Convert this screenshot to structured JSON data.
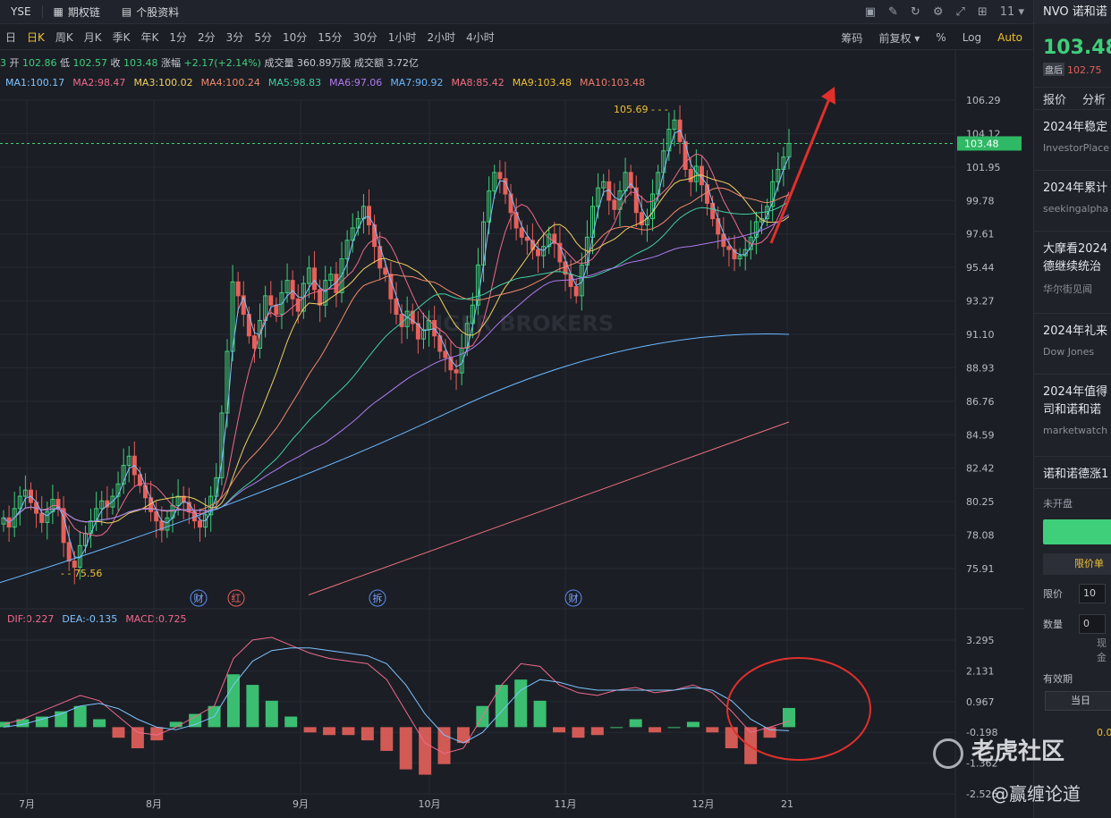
{
  "topbar": {
    "exchange": "YSE",
    "options_label": "期权链",
    "profile_label": "个股资料",
    "right_menu": "11"
  },
  "periods": [
    "日",
    "日K",
    "周K",
    "月K",
    "季K",
    "年K",
    "1分",
    "2分",
    "3分",
    "5分",
    "10分",
    "15分",
    "30分",
    "1小时",
    "2小时",
    "4小时"
  ],
  "active_period": "日K",
  "period_right": [
    "筹码",
    "前复权",
    "%",
    "Log",
    "Auto"
  ],
  "quote": {
    "open_label": "开",
    "open": "102.86",
    "low_label": "低",
    "low": "102.57",
    "close_label": "收",
    "close": "103.48",
    "chg_label": "涨幅",
    "chg": "+2.17(+2.14%)",
    "vol_label": "成交量",
    "vol": "360.89万股",
    "amt_label": "成交额",
    "amt": "3.72亿",
    "lead": "3"
  },
  "ma_legend": [
    {
      "text": "MA1:100.17",
      "color": "#7fc4ff"
    },
    {
      "text": "MA2:98.47",
      "color": "#f06a8c"
    },
    {
      "text": "MA3:100.02",
      "color": "#f0d060"
    },
    {
      "text": "MA4:100.24",
      "color": "#f08a6a"
    },
    {
      "text": "MA5:98.83",
      "color": "#40d0a0"
    },
    {
      "text": "MA6:97.06",
      "color": "#b07af0"
    },
    {
      "text": "MA7:90.92",
      "color": "#6ab8ff"
    },
    {
      "text": "MA8:85.42",
      "color": "#f07080"
    },
    {
      "text": "MA9:103.48",
      "color": "#f0c030"
    },
    {
      "text": "MA10:103.48",
      "color": "#f07a6a"
    }
  ],
  "macd_legend": [
    {
      "text": "DIF:0.227",
      "color": "#f06a8c"
    },
    {
      "text": "DEA:-0.135",
      "color": "#7fc4ff"
    },
    {
      "text": "MACD:0.725",
      "color": "#f06a8c"
    }
  ],
  "chart_data": {
    "type": "candlestick",
    "price_axis_ticks": [
      106.29,
      104.12,
      101.95,
      99.78,
      97.61,
      95.44,
      93.27,
      91.1,
      88.93,
      86.76,
      84.59,
      82.42,
      80.25,
      78.08,
      75.91
    ],
    "macd_axis_ticks": [
      3.295,
      2.131,
      0.967,
      -0.198,
      -1.362,
      -2.526
    ],
    "months": [
      "7月",
      "8月",
      "9月",
      "10月",
      "11月",
      "12月",
      "21"
    ],
    "last_price_label": "103.48",
    "high_annotation": "105.69",
    "low_annotation": "75.56",
    "event_markers": [
      "财",
      "红",
      "拆",
      "财"
    ],
    "closes": [
      79.2,
      78.6,
      79.8,
      80.6,
      81.0,
      80.2,
      79.5,
      78.9,
      79.6,
      80.4,
      79.8,
      77.6,
      76.4,
      76.0,
      77.4,
      78.2,
      79.0,
      79.8,
      80.3,
      79.9,
      80.6,
      81.4,
      82.6,
      83.2,
      82.0,
      81.3,
      80.5,
      79.6,
      79.0,
      78.4,
      79.2,
      80.0,
      80.6,
      80.2,
      79.6,
      79.0,
      78.6,
      79.4,
      80.6,
      81.8,
      86.0,
      90.0,
      94.5,
      93.6,
      92.4,
      91.0,
      90.2,
      92.0,
      93.6,
      93.0,
      92.4,
      93.8,
      94.6,
      93.4,
      92.6,
      94.4,
      95.4,
      94.0,
      93.0,
      94.6,
      95.0,
      93.8,
      96.0,
      97.2,
      98.0,
      98.6,
      99.4,
      98.2,
      96.8,
      95.4,
      95.0,
      93.4,
      92.4,
      91.6,
      92.6,
      91.8,
      90.8,
      91.4,
      92.0,
      91.0,
      90.0,
      89.6,
      88.8,
      88.6,
      90.2,
      91.8,
      93.0,
      95.6,
      98.4,
      100.4,
      101.6,
      101.2,
      100.2,
      99.0,
      98.0,
      97.4,
      97.2,
      96.6,
      96.2,
      96.8,
      97.6,
      97.0,
      95.8,
      95.0,
      94.2,
      93.6,
      95.6,
      97.4,
      99.4,
      100.6,
      101.0,
      99.8,
      99.2,
      100.4,
      101.6,
      100.6,
      99.0,
      98.2,
      98.6,
      100.2,
      101.6,
      103.0,
      104.4,
      105.0,
      103.6,
      101.8,
      101.0,
      102.0,
      100.8,
      99.6,
      98.6,
      97.6,
      96.8,
      96.6,
      96.0,
      96.2,
      96.6,
      97.4,
      98.4,
      98.6,
      99.4,
      101.0,
      101.8,
      102.6,
      103.48
    ],
    "macd_dif": [
      0.1,
      0.3,
      0.6,
      0.9,
      1.2,
      1.0,
      0.4,
      -0.2,
      -0.3,
      0.0,
      0.4,
      0.8,
      2.6,
      3.3,
      3.4,
      3.1,
      2.8,
      2.6,
      2.5,
      2.4,
      1.8,
      0.6,
      -0.6,
      -1.0,
      -0.8,
      0.4,
      1.6,
      2.4,
      2.3,
      1.6,
      1.3,
      1.2,
      1.4,
      1.5,
      1.3,
      1.4,
      1.6,
      1.3,
      0.6,
      -0.2,
      0.0,
      0.227
    ],
    "macd_dea": [
      0.0,
      0.1,
      0.3,
      0.5,
      0.8,
      0.9,
      0.7,
      0.3,
      0.0,
      -0.1,
      0.1,
      0.4,
      1.6,
      2.5,
      2.9,
      3.0,
      3.0,
      2.9,
      2.8,
      2.7,
      2.4,
      1.6,
      0.5,
      -0.3,
      -0.6,
      -0.2,
      0.6,
      1.4,
      1.8,
      1.7,
      1.5,
      1.4,
      1.4,
      1.4,
      1.4,
      1.4,
      1.5,
      1.4,
      1.0,
      0.3,
      -0.1,
      -0.135
    ],
    "macd_hist": [
      0.2,
      0.3,
      0.4,
      0.6,
      0.8,
      0.3,
      -0.4,
      -0.8,
      -0.5,
      0.2,
      0.5,
      0.8,
      2.0,
      1.6,
      1.0,
      0.4,
      -0.2,
      -0.3,
      -0.3,
      -0.5,
      -0.9,
      -1.6,
      -1.8,
      -1.4,
      -0.6,
      0.8,
      1.6,
      1.8,
      1.0,
      -0.2,
      -0.4,
      -0.3,
      0.0,
      0.3,
      -0.2,
      0.0,
      0.2,
      -0.2,
      -0.8,
      -1.4,
      -0.4,
      0.725
    ]
  },
  "sidebar": {
    "title": "NVO 诺和诺",
    "price": "103.48",
    "after_tag": "盘后",
    "after_price": "102.75",
    "tabs": [
      "报价",
      "分析"
    ],
    "news": [
      {
        "h": "2024年稳定",
        "s": "InvestorPlace"
      },
      {
        "h": "2024年累计",
        "s": "seekingalpha"
      },
      {
        "h": "大摩看2024",
        "s": "德继续统治"
      },
      {
        "h": "2024年礼来",
        "s": "Dow Jones"
      },
      {
        "h": "2024年值得",
        "s": "司和诺和诺"
      }
    ],
    "news_source_extra": [
      "华尔街见闻",
      "marketwatch"
    ],
    "news_last": "诺和诺德涨1",
    "status": "未开盘",
    "order_type": "限价单",
    "limit_label": "限价",
    "limit_val": "10",
    "qty_label": "数量",
    "qty_val": "0",
    "cash_label": "现金",
    "validity_label": "有效期",
    "today_label": "当日",
    "side_value": "0.0"
  },
  "watermark": {
    "brand": "老虎社区",
    "user": "@赢缠论道",
    "faint": "TIGER BROKERS"
  }
}
